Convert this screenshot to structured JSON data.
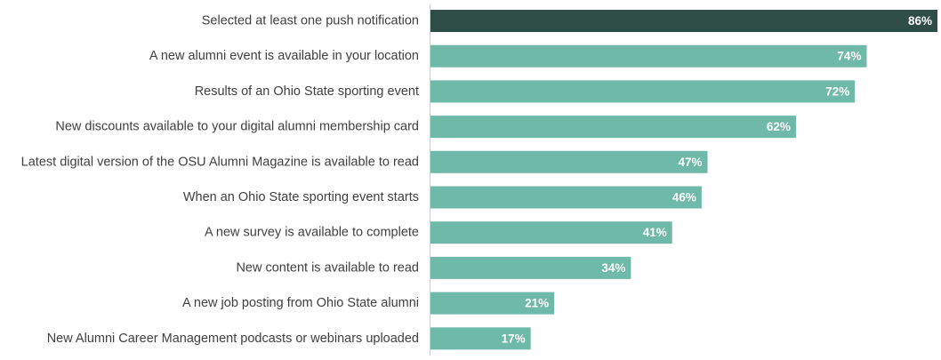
{
  "chart_data": {
    "type": "bar",
    "orientation": "horizontal",
    "categories": [
      "Selected at least one push notification",
      "A new alumni event is available in your location",
      "Results of an Ohio State sporting event",
      "New discounts available to your digital alumni membership card",
      "Latest digital version of the OSU Alumni Magazine is available to read",
      "When an Ohio State sporting event starts",
      "A new survey is available to complete",
      "New content is available to read",
      "A new job posting from Ohio State alumni",
      "New Alumni Career Management podcasts or webinars uploaded"
    ],
    "values": [
      86,
      74,
      72,
      62,
      47,
      46,
      41,
      34,
      21,
      17
    ],
    "value_labels": [
      "86%",
      "74%",
      "72%",
      "62%",
      "47%",
      "46%",
      "41%",
      "34%",
      "21%",
      "17%"
    ],
    "xlim": [
      0,
      86
    ],
    "grid": false,
    "legend": "none",
    "colors": {
      "highlight": "#2e4d46",
      "bar": "#6fb9a8",
      "axis": "#d0d0d0",
      "category_text": "#404040",
      "value_text": "#ffffff"
    }
  }
}
